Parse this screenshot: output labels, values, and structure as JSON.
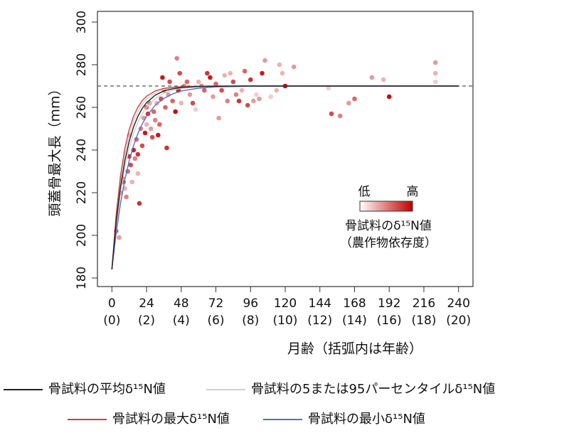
{
  "chart_data": {
    "type": "scatter",
    "xlabel": "月齢（括弧内は年齢）",
    "ylabel": "頭蓋骨最大長（mm）",
    "xlim": [
      -10,
      250
    ],
    "ylim": [
      176,
      305
    ],
    "xticks": [
      0,
      24,
      48,
      72,
      96,
      120,
      144,
      168,
      192,
      216,
      240
    ],
    "xtick_sublabels": [
      "(0)",
      "(2)",
      "(4)",
      "(6)",
      "(8)",
      "(10)",
      "(12)",
      "(14)",
      "(16)",
      "(18)",
      "(20)"
    ],
    "yticks": [
      180,
      200,
      220,
      240,
      260,
      280,
      300
    ],
    "hline": 270,
    "points": {
      "x": [
        3,
        5,
        6,
        7,
        8,
        9,
        10,
        11,
        12,
        12,
        13,
        14,
        15,
        16,
        17,
        18,
        18,
        19,
        20,
        21,
        22,
        23,
        24,
        24,
        25,
        26,
        27,
        28,
        29,
        30,
        31,
        32,
        33,
        34,
        35,
        36,
        37,
        38,
        39,
        40,
        42,
        44,
        45,
        46,
        47,
        48,
        50,
        52,
        54,
        56,
        58,
        60,
        62,
        64,
        66,
        68,
        70,
        72,
        74,
        76,
        78,
        80,
        82,
        84,
        86,
        88,
        90,
        92,
        94,
        96,
        98,
        100,
        102,
        104,
        106,
        110,
        114,
        116,
        118,
        120,
        126,
        150,
        152,
        158,
        164,
        168,
        180,
        188,
        192,
        224,
        224,
        224
      ],
      "y": [
        202,
        199,
        220,
        227,
        225,
        222,
        218,
        230,
        237,
        247,
        233,
        225,
        240,
        236,
        245,
        238,
        229,
        215,
        250,
        242,
        255,
        248,
        260,
        252,
        257,
        262,
        250,
        246,
        258,
        254,
        262,
        247,
        252,
        264,
        274,
        268,
        260,
        241,
        266,
        272,
        263,
        258,
        283,
        268,
        276,
        262,
        270,
        272,
        266,
        262,
        259,
        272,
        270,
        268,
        276,
        274,
        265,
        271,
        255,
        268,
        275,
        263,
        276,
        272,
        266,
        263,
        268,
        277,
        261,
        273,
        263,
        266,
        264,
        276,
        282,
        265,
        268,
        280,
        276,
        270,
        279,
        269,
        257,
        256,
        262,
        264,
        274,
        273,
        265,
        281,
        276,
        272
      ],
      "z": [
        0.6,
        0.4,
        0.5,
        0.9,
        0.7,
        0.3,
        0.5,
        0.6,
        0.8,
        0.4,
        0.7,
        0.3,
        0.9,
        0.5,
        0.6,
        0.8,
        0.3,
        0.8,
        0.5,
        0.7,
        0.4,
        0.9,
        0.6,
        0.3,
        0.8,
        0.5,
        0.4,
        0.7,
        0.6,
        0.5,
        0.3,
        0.9,
        0.6,
        0.7,
        0.9,
        0.5,
        0.6,
        0.8,
        0.4,
        0.7,
        0.6,
        0.95,
        0.5,
        0.9,
        0.7,
        0.3,
        0.5,
        0.6,
        0.4,
        0.7,
        0.2,
        0.3,
        0.5,
        0.6,
        0.8,
        0.9,
        0.4,
        0.6,
        0.4,
        0.7,
        0.3,
        0.5,
        0.3,
        0.7,
        0.5,
        0.8,
        0.3,
        0.6,
        0.7,
        0.8,
        0.4,
        0.2,
        0.4,
        0.9,
        0.4,
        0.2,
        0.3,
        0.3,
        0.3,
        0.95,
        0.4,
        0.2,
        0.7,
        0.5,
        0.4,
        0.6,
        0.4,
        0.3,
        0.95,
        0.4,
        0.3,
        0.2
      ]
    },
    "zlim": [
      0,
      1
    ],
    "color_low": "#ffffff",
    "color_high": "#c00000",
    "colorbar": {
      "low_label": "低",
      "high_label": "高",
      "title": "骨試料のδ¹⁵N値",
      "subtitle": "（農作物依存度）"
    },
    "curve_x": [
      0,
      3,
      6,
      9,
      12,
      15,
      18,
      21,
      24,
      30,
      36,
      42,
      48,
      60,
      72,
      96,
      120,
      240
    ],
    "series": [
      {
        "name": "骨試料の平均δ¹⁵N値",
        "color": "#222222",
        "values": [
          184,
          206.3,
          222.8,
          235.0,
          244.1,
          250.8,
          255.8,
          259.5,
          262.2,
          265.7,
          267.7,
          268.7,
          269.3,
          269.8,
          269.9,
          270,
          270,
          270
        ]
      },
      {
        "name": "骨試料の5または95パーセンタイルδ¹⁵N値",
        "color": "#d0d0d0",
        "values": [
          184,
          204.4,
          219.9,
          231.7,
          240.8,
          247.7,
          253.0,
          257.0,
          260.1,
          264.2,
          266.6,
          268.0,
          268.9,
          269.6,
          269.9,
          270,
          270,
          270
        ],
        "upper_values": [
          184,
          208.2,
          225.5,
          238.0,
          247.0,
          253.5,
          258.1,
          261.5,
          263.9,
          266.8,
          268.4,
          269.2,
          269.6,
          269.9,
          270,
          270,
          270,
          270
        ]
      },
      {
        "name": "骨試料の最大δ¹⁵N値",
        "color": "#d04040",
        "values": [
          184,
          210.0,
          228.1,
          240.8,
          249.6,
          255.8,
          260.1,
          263.1,
          265.2,
          267.7,
          268.9,
          269.4,
          269.7,
          269.9,
          270,
          270,
          270,
          270
        ]
      },
      {
        "name": "骨試料の最小δ¹⁵N値",
        "color": "#5570c8",
        "values": [
          184,
          201.3,
          215.1,
          226.2,
          235.0,
          242.1,
          247.7,
          252.2,
          255.8,
          261.0,
          264.2,
          266.3,
          267.7,
          269.0,
          269.6,
          269.9,
          270,
          270
        ]
      }
    ]
  }
}
